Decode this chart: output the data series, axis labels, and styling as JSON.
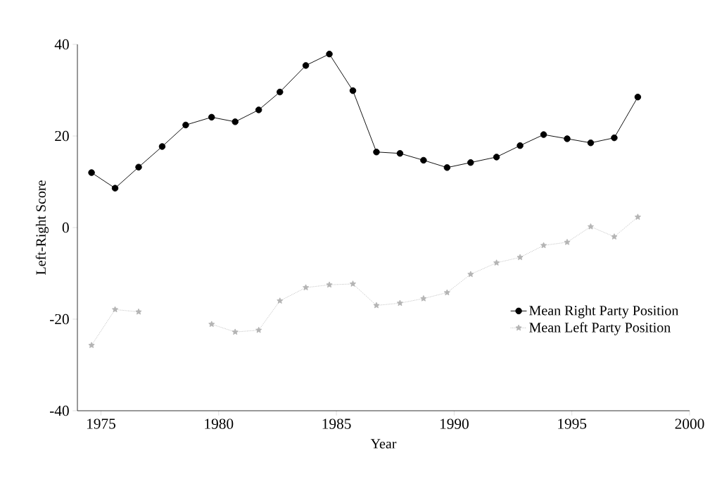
{
  "chart_data": {
    "type": "line",
    "xlabel": "Year",
    "ylabel": "Left-Right Score",
    "x": [
      1974.6,
      1975.6,
      1976.6,
      1977.6,
      1978.6,
      1979.7,
      1980.7,
      1981.7,
      1982.6,
      1983.7,
      1984.7,
      1985.7,
      1986.7,
      1987.7,
      1988.7,
      1989.7,
      1990.7,
      1991.8,
      1992.8,
      1993.8,
      1994.8,
      1995.8,
      1996.8,
      1997.8
    ],
    "series": [
      {
        "name": "Mean Right Party Position",
        "color": "#000000",
        "marker": "circle",
        "line_style": "solid",
        "values": [
          12.0,
          8.6,
          13.2,
          17.7,
          22.4,
          24.1,
          23.1,
          25.7,
          29.6,
          35.4,
          37.9,
          29.9,
          16.5,
          16.2,
          14.7,
          13.1,
          14.2,
          15.4,
          17.9,
          20.3,
          19.4,
          18.5,
          19.6,
          28.5
        ]
      },
      {
        "name": "Mean Left Party Position",
        "color": "#b4b4b4",
        "marker": "star",
        "line_style": "dotted",
        "values": [
          -25.7,
          -17.9,
          -18.4,
          null,
          null,
          -21.1,
          -22.8,
          -22.4,
          -16.0,
          -13.1,
          -12.5,
          -12.3,
          -17.0,
          -16.5,
          -15.5,
          -14.2,
          -10.2,
          -7.7,
          -6.5,
          -3.9,
          -3.2,
          0.2,
          -2.0,
          2.3
        ]
      }
    ],
    "xlim": [
      1974,
      2000
    ],
    "xticks": [
      1975,
      1980,
      1985,
      1990,
      1995,
      2000
    ],
    "ylim": [
      -40,
      40
    ],
    "yticks": [
      -40,
      -20,
      0,
      20,
      40
    ],
    "grid": false,
    "legend": "bottom right"
  }
}
